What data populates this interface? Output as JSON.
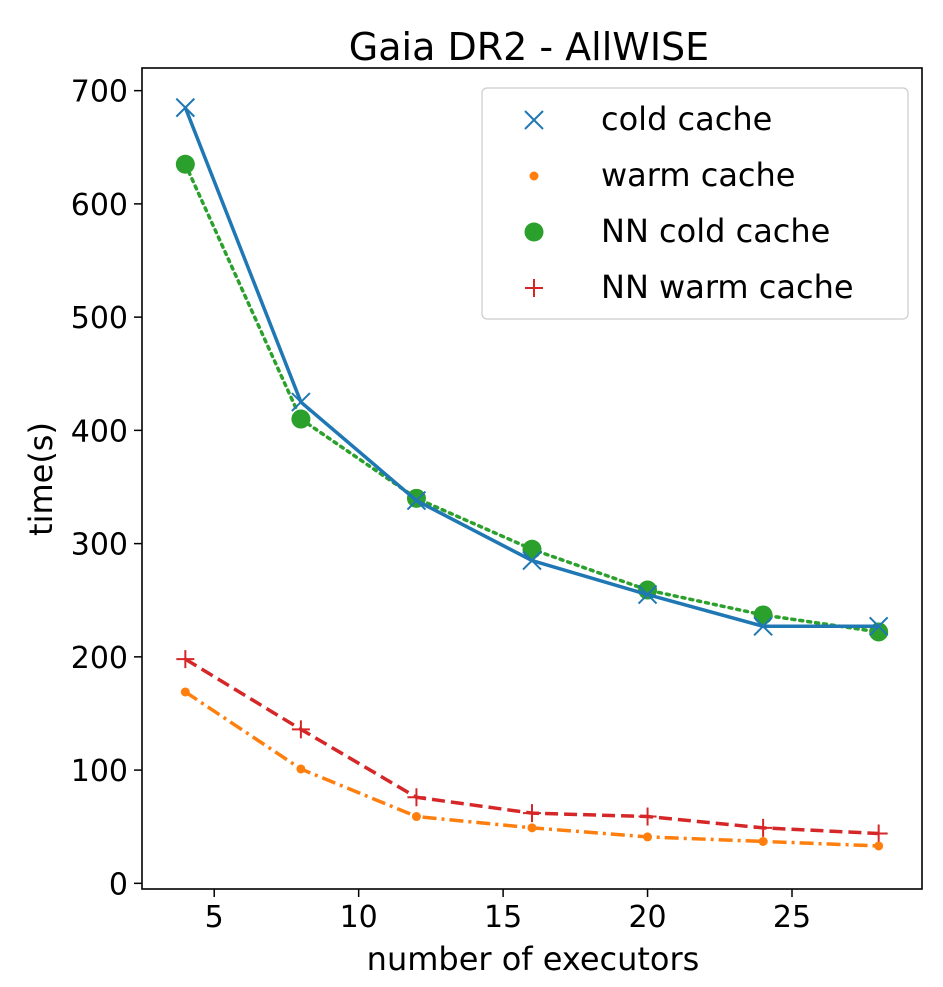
{
  "chart_data": {
    "type": "line",
    "title": "Gaia DR2 - AllWISE",
    "xlabel": "number of executors",
    "ylabel": "time(s)",
    "xlim": [
      2.5,
      29.5
    ],
    "ylim": [
      -5,
      720
    ],
    "xticks": [
      5,
      10,
      15,
      20,
      25
    ],
    "yticks": [
      0,
      100,
      200,
      300,
      400,
      500,
      600,
      700
    ],
    "grid": false,
    "legend_position": "top-right",
    "x": [
      4,
      8,
      12,
      16,
      20,
      24,
      28
    ],
    "series": [
      {
        "name": "cold cache",
        "values": [
          685,
          425,
          338,
          285,
          255,
          227,
          227
        ],
        "color": "#1f77b4",
        "linestyle": "solid",
        "marker": "x"
      },
      {
        "name": "warm cache",
        "values": [
          169,
          101,
          59,
          49,
          41,
          37,
          33
        ],
        "color": "#ff7f0e",
        "linestyle": "dashdot",
        "marker": "dot"
      },
      {
        "name": "NN cold cache",
        "values": [
          635,
          410,
          340,
          295,
          259,
          237,
          222
        ],
        "color": "#2ca02c",
        "linestyle": "dotted",
        "marker": "circle"
      },
      {
        "name": "NN warm cache",
        "values": [
          198,
          136,
          76,
          62,
          59,
          49,
          44
        ],
        "color": "#d62728",
        "linestyle": "dashed",
        "marker": "plus"
      }
    ]
  }
}
